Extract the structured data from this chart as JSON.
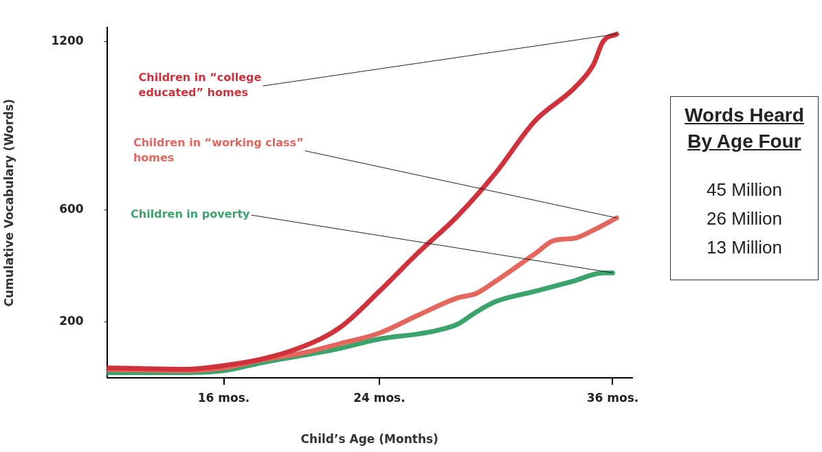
{
  "chart_data": {
    "type": "line",
    "xlabel": "Child’s Age (Months)",
    "ylabel": "Cumulative Vocabulary (Words)",
    "xlim": [
      10,
      37
    ],
    "xticks": [
      {
        "value": 16,
        "label": "16 mos."
      },
      {
        "value": 24,
        "label": "24 mos."
      },
      {
        "value": 36,
        "label": "36 mos."
      }
    ],
    "ylim": [
      0,
      1250
    ],
    "yticks": [
      200,
      600,
      1200
    ],
    "legend": false,
    "marker": "none",
    "line_style": "solid",
    "series": [
      {
        "name": "Children in “college educated” homes",
        "color": "#d0323c",
        "x": [
          10,
          14,
          16,
          18,
          20,
          22,
          24,
          26,
          28,
          30,
          32,
          34,
          35,
          35.5,
          36.2
        ],
        "values": [
          36,
          31,
          44,
          68,
          110,
          181,
          309,
          447,
          576,
          733,
          917,
          1033,
          1117,
          1200,
          1227
        ]
      },
      {
        "name": "Children in “working class” homes",
        "color": "#e4675e",
        "x": [
          10,
          14,
          16,
          18,
          20,
          22,
          24,
          26,
          28,
          29,
          30,
          32,
          33,
          34,
          35,
          36.2
        ],
        "values": [
          30,
          26,
          36,
          65,
          88,
          123,
          160,
          224,
          285,
          302,
          346,
          443,
          491,
          498,
          527,
          571
        ]
      },
      {
        "name": "Children in poverty",
        "color": "#3ba46c",
        "x": [
          10,
          14,
          16,
          18,
          20,
          22,
          24,
          26,
          27,
          28,
          29,
          30,
          32,
          34,
          35.5,
          36
        ],
        "values": [
          19,
          19,
          26,
          55,
          80,
          106,
          139,
          157,
          170,
          191,
          236,
          273,
          309,
          346,
          375,
          375
        ]
      }
    ],
    "annotations": [
      "Words Heard By Age Four",
      "45 Million",
      "26 Million",
      "13 Million"
    ]
  }
}
